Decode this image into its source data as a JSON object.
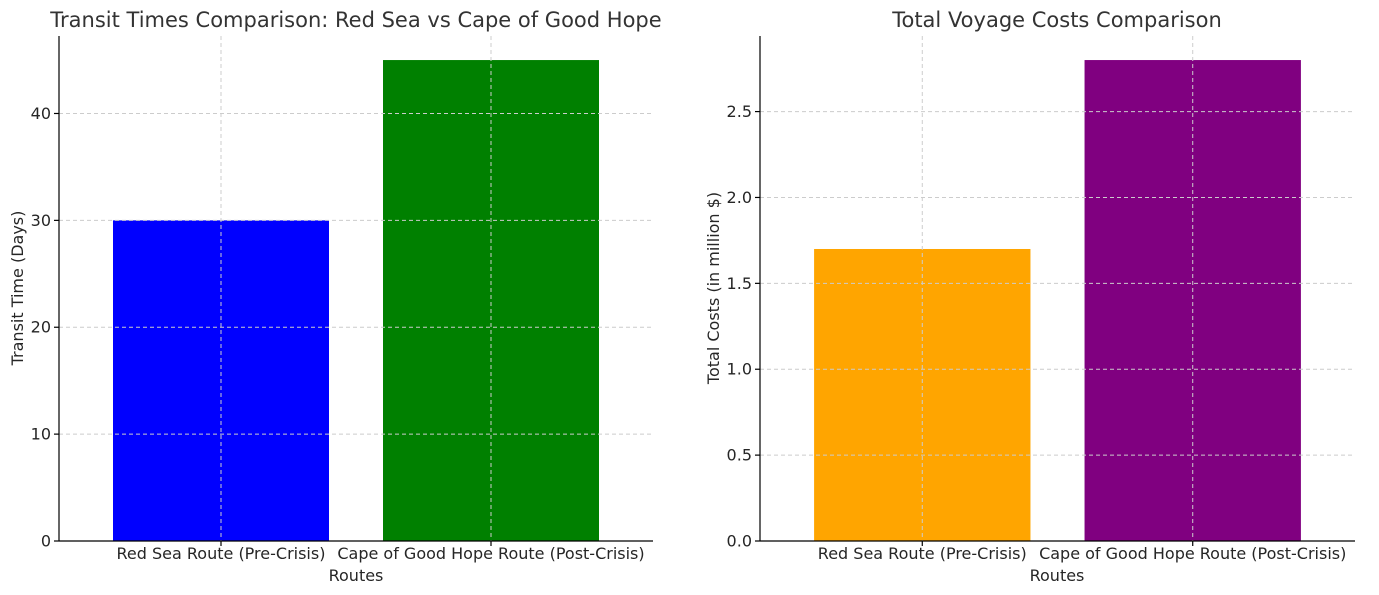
{
  "chart_data": [
    {
      "type": "bar",
      "title": "Transit Times Comparison: Red Sea vs Cape of Good Hope",
      "xlabel": "Routes",
      "ylabel": "Transit Time (Days)",
      "categories": [
        "Red Sea Route (Pre-Crisis)",
        "Cape of Good Hope Route (Post-Crisis)"
      ],
      "values": [
        30,
        45
      ],
      "colors": [
        "#0000ff",
        "#008000"
      ],
      "ylim": [
        0,
        47.25
      ],
      "yticks": [
        0,
        10,
        20,
        30,
        40
      ],
      "ytick_labels": [
        "0",
        "10",
        "20",
        "30",
        "40"
      ],
      "grid": true
    },
    {
      "type": "bar",
      "title": "Total Voyage Costs Comparison",
      "xlabel": "Routes",
      "ylabel": "Total Costs (in million $)",
      "categories": [
        "Red Sea Route (Pre-Crisis)",
        "Cape of Good Hope Route (Post-Crisis)"
      ],
      "values": [
        1.7,
        2.8
      ],
      "colors": [
        "#ffa500",
        "#800080"
      ],
      "ylim": [
        0,
        2.94
      ],
      "yticks": [
        0,
        0.5,
        1.0,
        1.5,
        2.0,
        2.5
      ],
      "ytick_labels": [
        "0.0",
        "0.5",
        "1.0",
        "1.5",
        "2.0",
        "2.5"
      ],
      "grid": true
    }
  ]
}
